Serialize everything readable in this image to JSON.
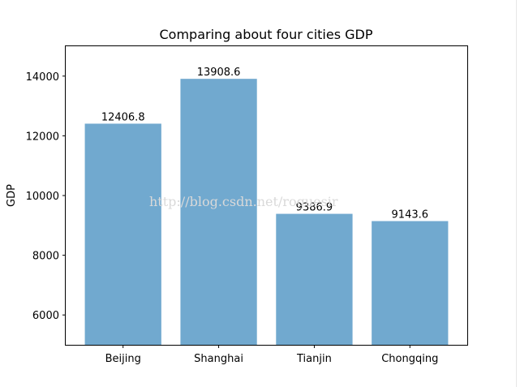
{
  "chart_data": {
    "type": "bar",
    "title": "Comparing about four cities GDP",
    "xlabel": "",
    "ylabel": "GDP",
    "categories": [
      "Beijing",
      "Shanghai",
      "Tianjin",
      "Chongqing"
    ],
    "values": [
      12406.8,
      13908.6,
      9386.9,
      9143.6
    ],
    "value_labels": [
      "12406.8",
      "13908.6",
      "9386.9",
      "9143.6"
    ],
    "ylim": [
      5000,
      15000
    ],
    "yticks": [
      6000,
      8000,
      10000,
      12000,
      14000
    ],
    "ytick_labels": [
      "6000",
      "8000",
      "10000",
      "12000",
      "14000"
    ],
    "bar_color": "#71a9cf",
    "grid": false,
    "legend": "none"
  },
  "watermark": "http://blog.csdn.net/roguesir"
}
